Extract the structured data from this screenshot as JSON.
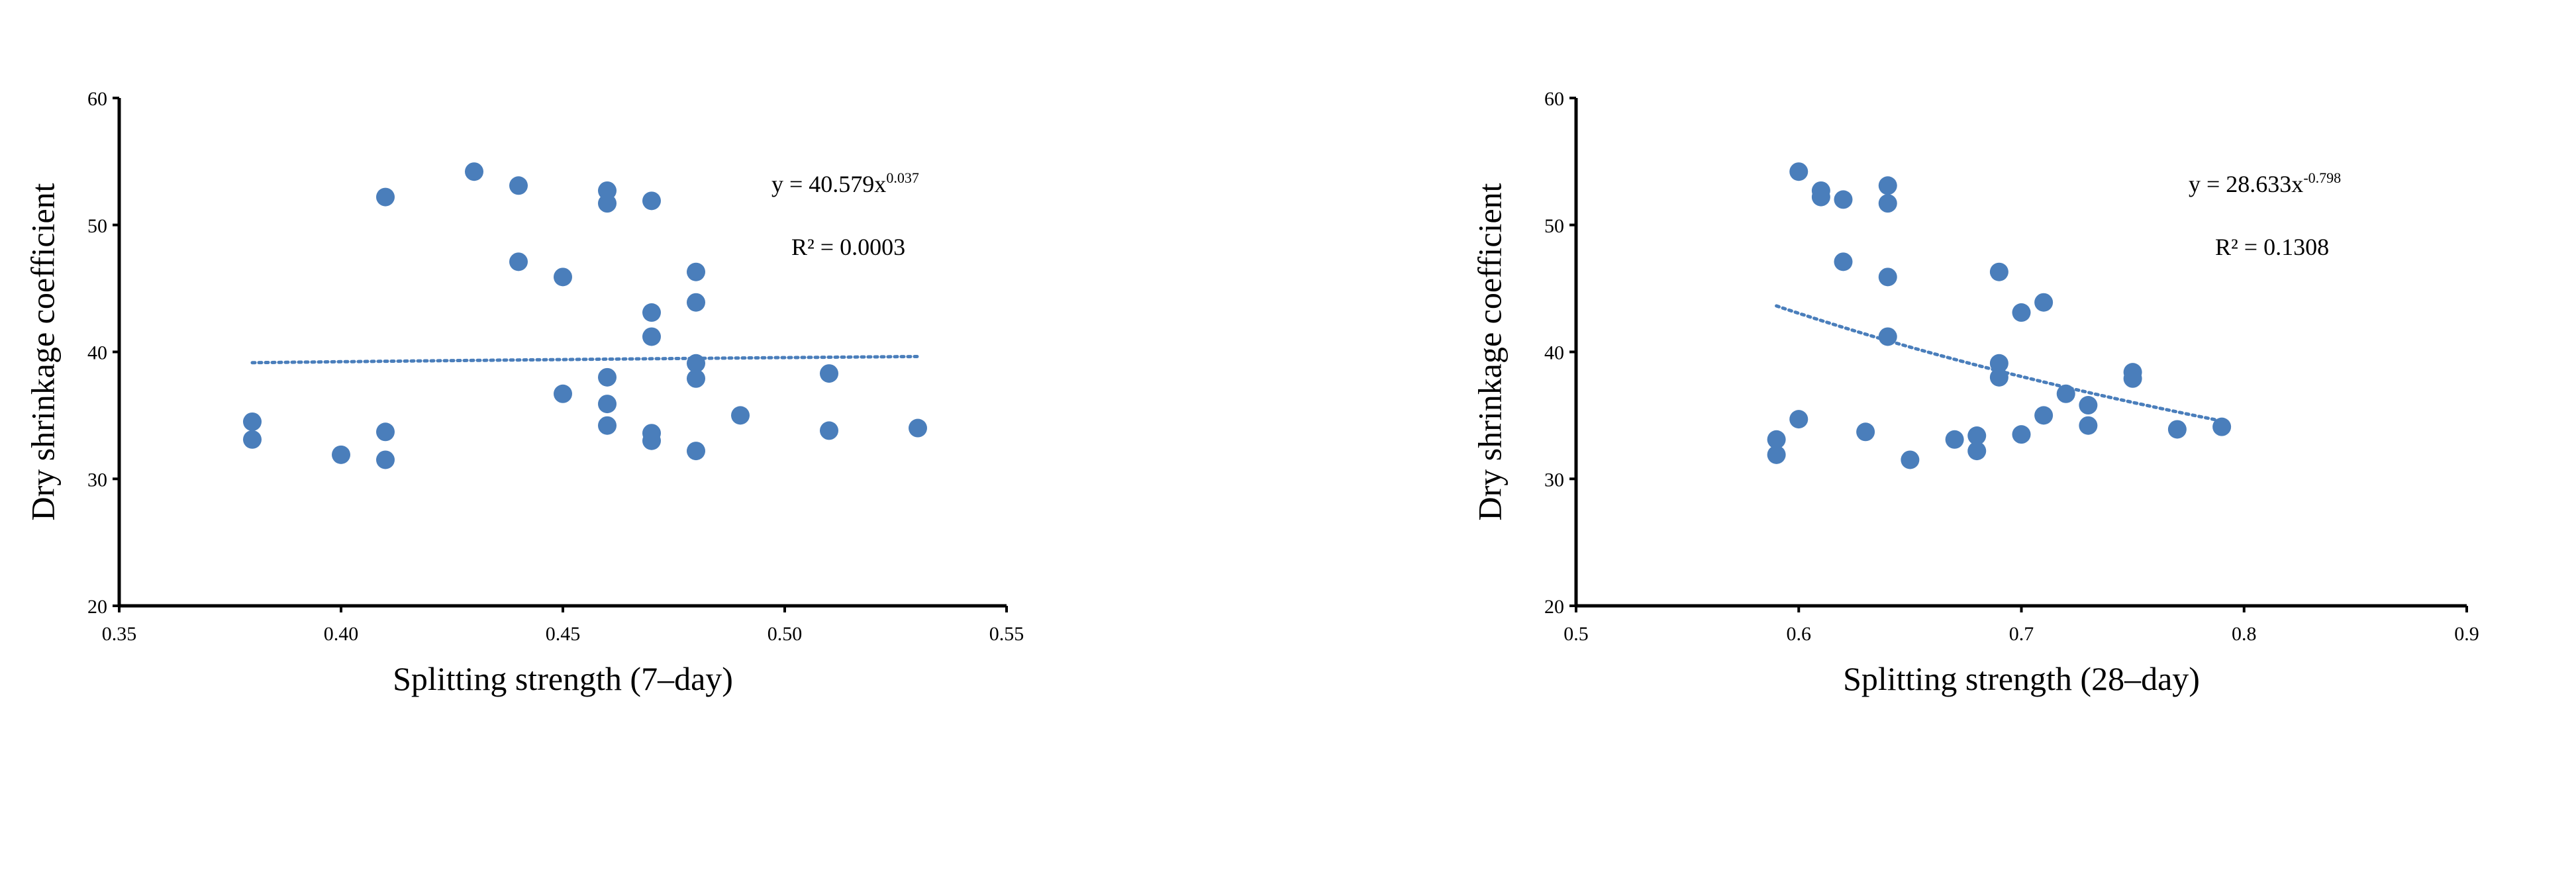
{
  "chart_data": [
    {
      "type": "scatter",
      "xlabel": "Splitting strength (7–day)",
      "ylabel": "Dry shrinkage coefficient",
      "xlim": [
        0.35,
        0.55
      ],
      "ylim": [
        20,
        60
      ],
      "x_ticks": [
        "0.35",
        "0.40",
        "0.45",
        "0.50",
        "0.55"
      ],
      "y_ticks": [
        "20",
        "30",
        "40",
        "50",
        "60"
      ],
      "grid": false,
      "marker_color": "#4a7ebb",
      "points": [
        [
          0.38,
          34.5
        ],
        [
          0.38,
          33.1
        ],
        [
          0.4,
          31.9
        ],
        [
          0.41,
          52.2
        ],
        [
          0.41,
          33.7
        ],
        [
          0.41,
          31.5
        ],
        [
          0.43,
          54.2
        ],
        [
          0.44,
          53.1
        ],
        [
          0.44,
          47.1
        ],
        [
          0.45,
          45.9
        ],
        [
          0.45,
          36.7
        ],
        [
          0.46,
          52.7
        ],
        [
          0.46,
          51.7
        ],
        [
          0.46,
          38.0
        ],
        [
          0.46,
          35.9
        ],
        [
          0.46,
          34.2
        ],
        [
          0.47,
          51.9
        ],
        [
          0.47,
          43.1
        ],
        [
          0.47,
          41.2
        ],
        [
          0.47,
          33.6
        ],
        [
          0.47,
          33.0
        ],
        [
          0.48,
          46.3
        ],
        [
          0.48,
          43.9
        ],
        [
          0.48,
          39.1
        ],
        [
          0.48,
          37.9
        ],
        [
          0.48,
          32.2
        ],
        [
          0.49,
          35.0
        ],
        [
          0.51,
          38.3
        ],
        [
          0.51,
          33.8
        ],
        [
          0.53,
          34.0
        ]
      ],
      "trendline": {
        "type": "power",
        "a": 40.579,
        "b": 0.037,
        "x_range": [
          0.38,
          0.53
        ],
        "equation_prefix": "y = 40.579x",
        "equation_exp": "0.037",
        "r2_text": "R² = 0.0003"
      }
    },
    {
      "type": "scatter",
      "xlabel": "Splitting strength (28–day)",
      "ylabel": "Dry shrinkage coefficient",
      "xlim": [
        0.5,
        0.9
      ],
      "ylim": [
        20,
        60
      ],
      "x_ticks": [
        "0.5",
        "0.6",
        "0.7",
        "0.8",
        "0.9"
      ],
      "y_ticks": [
        "20",
        "30",
        "40",
        "50",
        "60"
      ],
      "grid": false,
      "marker_color": "#4a7ebb",
      "points": [
        [
          0.59,
          33.1
        ],
        [
          0.59,
          31.9
        ],
        [
          0.6,
          54.2
        ],
        [
          0.6,
          34.7
        ],
        [
          0.61,
          52.7
        ],
        [
          0.61,
          52.2
        ],
        [
          0.62,
          52.0
        ],
        [
          0.62,
          47.1
        ],
        [
          0.63,
          33.7
        ],
        [
          0.64,
          53.1
        ],
        [
          0.64,
          51.7
        ],
        [
          0.64,
          45.9
        ],
        [
          0.64,
          41.2
        ],
        [
          0.65,
          31.5
        ],
        [
          0.67,
          33.1
        ],
        [
          0.68,
          33.4
        ],
        [
          0.68,
          32.2
        ],
        [
          0.69,
          46.3
        ],
        [
          0.69,
          39.1
        ],
        [
          0.69,
          38.0
        ],
        [
          0.7,
          43.1
        ],
        [
          0.7,
          33.5
        ],
        [
          0.71,
          43.9
        ],
        [
          0.71,
          35.0
        ],
        [
          0.72,
          36.7
        ],
        [
          0.73,
          35.8
        ],
        [
          0.73,
          34.2
        ],
        [
          0.75,
          38.4
        ],
        [
          0.75,
          37.9
        ],
        [
          0.77,
          33.9
        ],
        [
          0.79,
          34.1
        ]
      ],
      "trendline": {
        "type": "power",
        "a": 28.633,
        "b": -0.798,
        "x_range": [
          0.59,
          0.79
        ],
        "equation_prefix": "y = 28.633x",
        "equation_exp": "-0.798",
        "r2_text": "R² = 0.1308"
      }
    }
  ]
}
